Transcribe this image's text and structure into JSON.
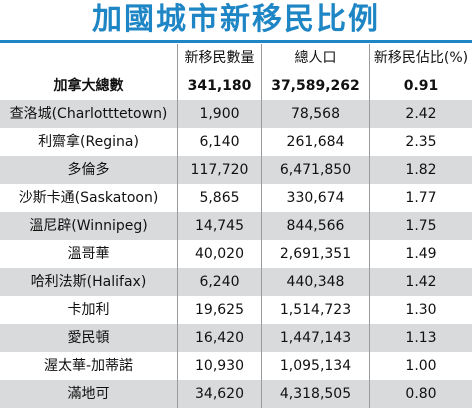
{
  "title": "加國城市新移民比例",
  "chart_data": {
    "type": "table",
    "columns": [
      "",
      "新移民數量",
      "總人口",
      "新移民佔比(%)"
    ],
    "rows": [
      {
        "city": "加拿大總數",
        "immigrants": "341,180",
        "population": "37,589,262",
        "share": "0.91"
      },
      {
        "city": "查洛城(Charlotttetown)",
        "immigrants": "1,900",
        "population": "78,568",
        "share": "2.42"
      },
      {
        "city": "利齋拿(Regina)",
        "immigrants": "6,140",
        "population": "261,684",
        "share": "2.35"
      },
      {
        "city": "多倫多",
        "immigrants": "117,720",
        "population": "6,471,850",
        "share": "1.82"
      },
      {
        "city": "沙斯卡通(Saskatoon)",
        "immigrants": "5,865",
        "population": "330,674",
        "share": "1.77"
      },
      {
        "city": "溫尼辟(Winnipeg)",
        "immigrants": "14,745",
        "population": "844,566",
        "share": "1.75"
      },
      {
        "city": "溫哥華",
        "immigrants": "40,020",
        "population": "2,691,351",
        "share": "1.49"
      },
      {
        "city": "哈利法斯(Halifax)",
        "immigrants": "6,240",
        "population": "440,348",
        "share": "1.42"
      },
      {
        "city": "卡加利",
        "immigrants": "19,625",
        "population": "1,514,723",
        "share": "1.30"
      },
      {
        "city": "愛民頓",
        "immigrants": "16,420",
        "population": "1,447,143",
        "share": "1.13"
      },
      {
        "city": "渥太華-加蒂諾",
        "immigrants": "10,930",
        "population": "1,095,134",
        "share": "1.00"
      },
      {
        "city": "滿地可",
        "immigrants": "34,620",
        "population": "4,318,505",
        "share": "0.80"
      }
    ]
  },
  "colors": {
    "title": "#1f86c6",
    "stripe": "#d9dadb"
  }
}
